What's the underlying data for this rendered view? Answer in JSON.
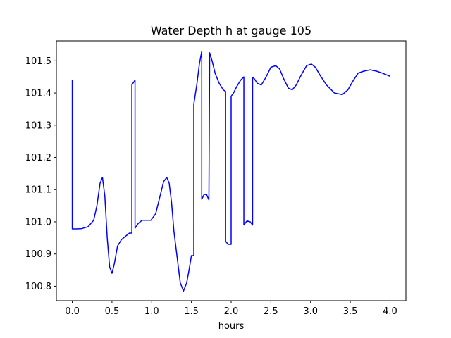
{
  "chart_data": {
    "type": "line",
    "title": "Water Depth h at gauge 105",
    "xlabel": "hours",
    "ylabel": "",
    "xlim": [
      -0.2,
      4.2
    ],
    "ylim": [
      100.755,
      101.562
    ],
    "grid": false,
    "xticks": [
      0.0,
      0.5,
      1.0,
      1.5,
      2.0,
      2.5,
      3.0,
      3.5,
      4.0
    ],
    "xtick_labels": [
      "0.0",
      "0.5",
      "1.0",
      "1.5",
      "2.0",
      "2.5",
      "3.0",
      "3.5",
      "4.0"
    ],
    "yticks": [
      100.8,
      100.9,
      101.0,
      101.1,
      101.2,
      101.3,
      101.4,
      101.5
    ],
    "ytick_labels": [
      "100.8",
      "100.9",
      "101.0",
      "101.1",
      "101.2",
      "101.3",
      "101.4",
      "101.5"
    ],
    "series": [
      {
        "color": "#0000ff",
        "x": [
          0.0,
          0.0,
          0.05,
          0.12,
          0.2,
          0.27,
          0.31,
          0.35,
          0.38,
          0.41,
          0.44,
          0.47,
          0.5,
          0.53,
          0.57,
          0.62,
          0.67,
          0.72,
          0.75,
          0.75,
          0.79,
          0.79,
          0.83,
          0.88,
          0.93,
          0.99,
          1.05,
          1.1,
          1.15,
          1.19,
          1.22,
          1.25,
          1.28,
          1.32,
          1.36,
          1.4,
          1.44,
          1.47,
          1.5,
          1.53,
          1.53,
          1.57,
          1.6,
          1.63,
          1.63,
          1.66,
          1.69,
          1.72,
          1.72,
          1.73,
          1.76,
          1.8,
          1.85,
          1.9,
          1.93,
          1.93,
          1.96,
          2.0,
          2.0,
          2.03,
          2.07,
          2.12,
          2.16,
          2.16,
          2.2,
          2.24,
          2.27,
          2.27,
          2.29,
          2.33,
          2.38,
          2.44,
          2.5,
          2.56,
          2.61,
          2.66,
          2.72,
          2.77,
          2.82,
          2.88,
          2.95,
          3.01,
          3.06,
          3.12,
          3.2,
          3.3,
          3.4,
          3.47,
          3.54,
          3.6,
          3.67,
          3.75,
          3.83,
          3.9,
          3.96,
          4.0
        ],
        "y": [
          101.44,
          100.978,
          100.978,
          100.979,
          100.985,
          101.005,
          101.05,
          101.12,
          101.138,
          101.08,
          100.95,
          100.86,
          100.84,
          100.87,
          100.925,
          100.945,
          100.955,
          100.965,
          100.965,
          101.425,
          101.44,
          100.98,
          100.995,
          101.005,
          101.005,
          101.005,
          101.025,
          101.075,
          101.125,
          101.138,
          101.12,
          101.06,
          100.97,
          100.89,
          100.81,
          100.785,
          100.81,
          100.85,
          100.895,
          100.895,
          101.365,
          101.43,
          101.49,
          101.53,
          101.07,
          101.085,
          101.085,
          101.068,
          101.068,
          101.525,
          101.5,
          101.46,
          101.43,
          101.41,
          101.405,
          100.94,
          100.93,
          100.93,
          101.39,
          101.4,
          101.42,
          101.44,
          101.45,
          100.99,
          101.003,
          101.0,
          100.99,
          101.448,
          101.445,
          101.43,
          101.425,
          101.45,
          101.48,
          101.485,
          101.475,
          101.445,
          101.415,
          101.41,
          101.425,
          101.455,
          101.485,
          101.49,
          101.48,
          101.455,
          101.425,
          101.4,
          101.395,
          101.41,
          101.44,
          101.462,
          101.468,
          101.472,
          101.468,
          101.462,
          101.456,
          101.452
        ]
      }
    ]
  }
}
